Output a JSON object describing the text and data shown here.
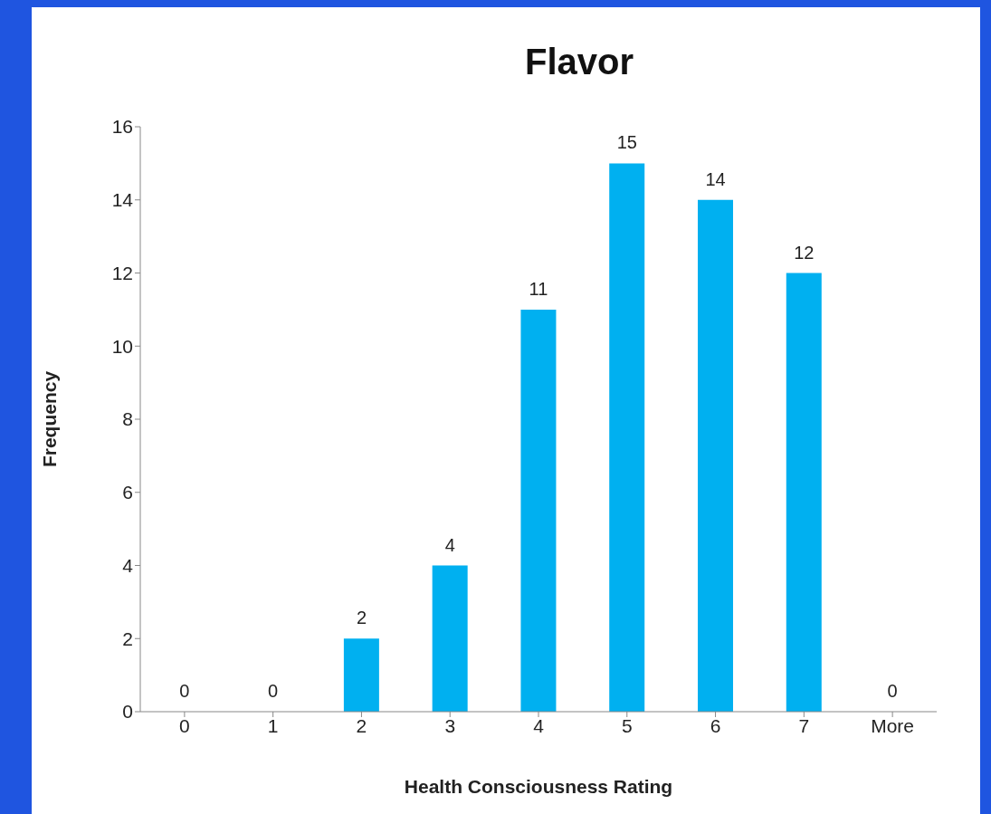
{
  "chart_data": {
    "type": "bar",
    "title": "Flavor",
    "xlabel": "Health Consciousness Rating",
    "ylabel": "Frequency",
    "categories": [
      "0",
      "1",
      "2",
      "3",
      "4",
      "5",
      "6",
      "7",
      "More"
    ],
    "values": [
      0,
      0,
      2,
      4,
      11,
      15,
      14,
      12,
      0
    ],
    "color": "#00b0f0",
    "ylim": [
      0,
      16
    ],
    "yticks": [
      0,
      2,
      4,
      6,
      8,
      10,
      12,
      14,
      16
    ],
    "grid": false,
    "data_labels": true
  }
}
